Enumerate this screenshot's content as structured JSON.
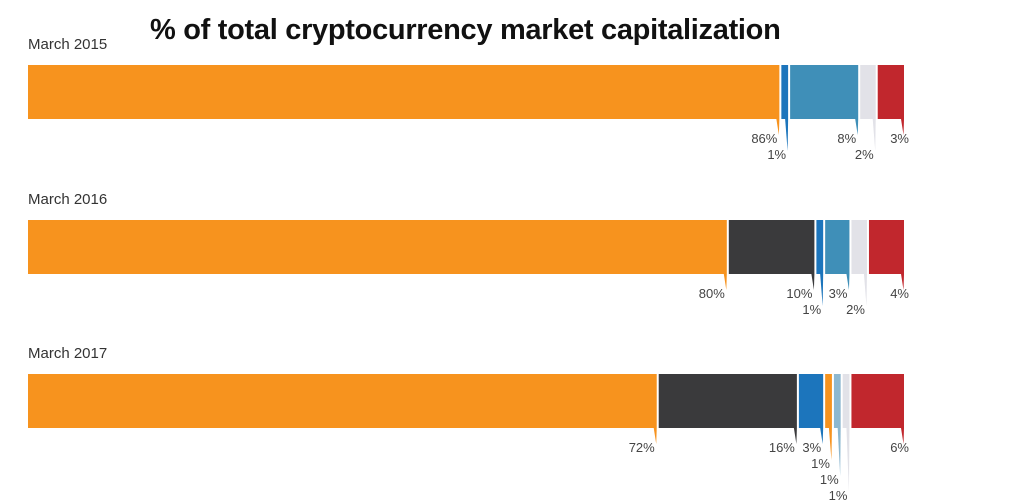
{
  "chart_data": {
    "type": "bar",
    "subtype": "stacked-100-horizontal",
    "title": "% of total cryptocurrency market capitalization",
    "categories": [
      "March 2015",
      "March 2016",
      "March 2017"
    ],
    "rows": [
      {
        "label": "March 2015",
        "segments": [
          {
            "value": 86,
            "label": "86%",
            "color": "#F7931E"
          },
          {
            "value": 1,
            "label": "1%",
            "color": "#1C75BC"
          },
          {
            "value": 8,
            "label": "8%",
            "color": "#3F8FB8"
          },
          {
            "value": 2,
            "label": "2%",
            "color": "#E2E2E8"
          },
          {
            "value": 3,
            "label": "3%",
            "color": "#C1272D"
          }
        ]
      },
      {
        "label": "March 2016",
        "segments": [
          {
            "value": 80,
            "label": "80%",
            "color": "#F7931E"
          },
          {
            "value": 10,
            "label": "10%",
            "color": "#3A3A3C"
          },
          {
            "value": 1,
            "label": "1%",
            "color": "#1C75BC"
          },
          {
            "value": 3,
            "label": "3%",
            "color": "#3F8FB8"
          },
          {
            "value": 2,
            "label": "2%",
            "color": "#E2E2E8"
          },
          {
            "value": 4,
            "label": "4%",
            "color": "#C1272D"
          }
        ]
      },
      {
        "label": "March 2017",
        "segments": [
          {
            "value": 72,
            "label": "72%",
            "color": "#F7931E"
          },
          {
            "value": 16,
            "label": "16%",
            "color": "#3A3A3C"
          },
          {
            "value": 3,
            "label": "3%",
            "color": "#1C75BC"
          },
          {
            "value": 1,
            "label": "1%",
            "color": "#F7931E"
          },
          {
            "value": 1,
            "label": "1%",
            "color": "#8DB8D0"
          },
          {
            "value": 1,
            "label": "1%",
            "color": "#E2E2E8"
          },
          {
            "value": 6,
            "label": "6%",
            "color": "#C1272D"
          }
        ]
      }
    ],
    "xlim": [
      0,
      100
    ],
    "legend": "none",
    "grid": false
  }
}
